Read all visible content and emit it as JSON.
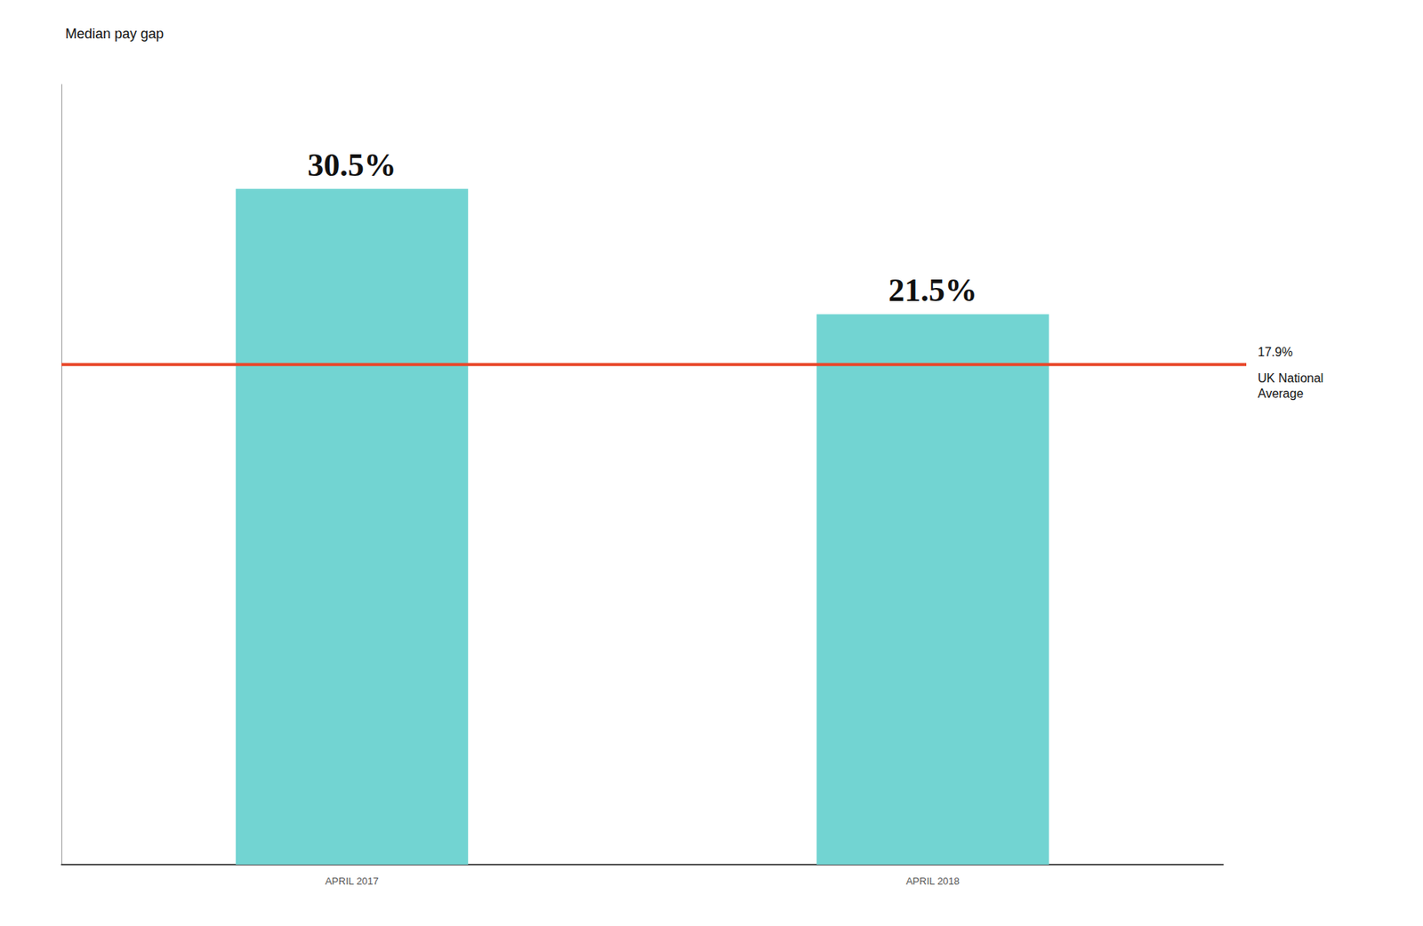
{
  "chart_data": {
    "type": "bar",
    "title": "Median pay gap",
    "categories": [
      "APRIL 2017",
      "APRIL 2018"
    ],
    "values": [
      30.5,
      21.5
    ],
    "value_labels": [
      "30.5%",
      "21.5%"
    ],
    "data_labels": true,
    "color": "#72d4d2",
    "ylim": [
      -18,
      38
    ],
    "tick_labels": "x",
    "grid": false,
    "reference_line": {
      "value": 17.9,
      "label": "17.9%",
      "sublabel": "UK National\nAverage",
      "color": "#e8472a"
    }
  }
}
